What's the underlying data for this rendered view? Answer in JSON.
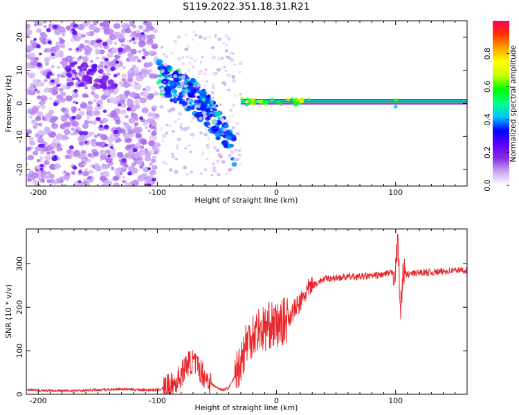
{
  "title": "S119.2022.351.18.31.R21",
  "chart_data": [
    {
      "type": "heatmap",
      "xlabel": "Height of straight line (km)",
      "ylabel": "Frequency (Hz)",
      "xlim": [
        -210,
        160
      ],
      "ylim": [
        -25,
        25
      ],
      "xticks": [
        -200,
        -100,
        0,
        100
      ],
      "yticks": [
        -20,
        -10,
        0,
        10,
        20
      ],
      "colorbar": {
        "label": "Normalized spectral amplitude",
        "range": [
          0,
          1
        ],
        "ticks": [
          0.0,
          0.2,
          0.4,
          0.6,
          0.8
        ],
        "colors": [
          "#ffffff",
          "#c9a7f5",
          "#8a2be2",
          "#5a00ff",
          "#0000ff",
          "#00c8ff",
          "#00ff80",
          "#00ff00",
          "#c8ff00",
          "#ffff00",
          "#ffa500",
          "#ff3000",
          "#ff0060"
        ]
      },
      "features": [
        {
          "name": "diffuse noise",
          "x_range": [
            -210,
            -100
          ],
          "y_range": [
            -25,
            25
          ],
          "amplitude": 0.05
        },
        {
          "name": "cluster",
          "x": [
            -175,
            -135
          ],
          "y": [
            5,
            12
          ],
          "amplitude": 0.15
        },
        {
          "name": "descending band",
          "x": [
            -100,
            -70,
            -50,
            -35
          ],
          "y": [
            8,
            2,
            -5,
            -15
          ],
          "amplitude": 0.3
        },
        {
          "name": "steady line",
          "x_range": [
            -30,
            160
          ],
          "y": 0.5,
          "amplitude": 0.7
        }
      ]
    },
    {
      "type": "line",
      "xlabel": "Height of straight line (km)",
      "ylabel": "SNR (10 * v/v)",
      "xlim": [
        -210,
        160
      ],
      "ylim": [
        0,
        380
      ],
      "xticks": [
        -200,
        -100,
        0,
        100
      ],
      "yticks": [
        0,
        100,
        200,
        300
      ],
      "color": "#e8272b",
      "series": [
        {
          "x": [
            -210,
            -190,
            -170,
            -150,
            -130,
            -110,
            -100,
            -90,
            -85,
            -80,
            -75,
            -70,
            -65,
            -60,
            -55,
            -50,
            -45,
            -40,
            -35,
            -30,
            -25,
            -20,
            -15,
            -10,
            -5,
            0,
            5,
            10,
            15,
            20,
            25,
            30,
            40,
            50,
            60,
            70,
            80,
            90,
            95,
            100,
            102,
            104,
            106,
            110,
            120,
            130,
            140,
            150,
            160
          ],
          "y": [
            10,
            8,
            8,
            10,
            12,
            10,
            10,
            18,
            25,
            45,
            70,
            75,
            60,
            40,
            25,
            15,
            10,
            15,
            40,
            80,
            120,
            140,
            150,
            150,
            160,
            155,
            165,
            175,
            195,
            210,
            235,
            250,
            265,
            268,
            270,
            270,
            272,
            275,
            278,
            282,
            360,
            180,
            280,
            275,
            280,
            280,
            282,
            285,
            285
          ]
        }
      ]
    }
  ]
}
